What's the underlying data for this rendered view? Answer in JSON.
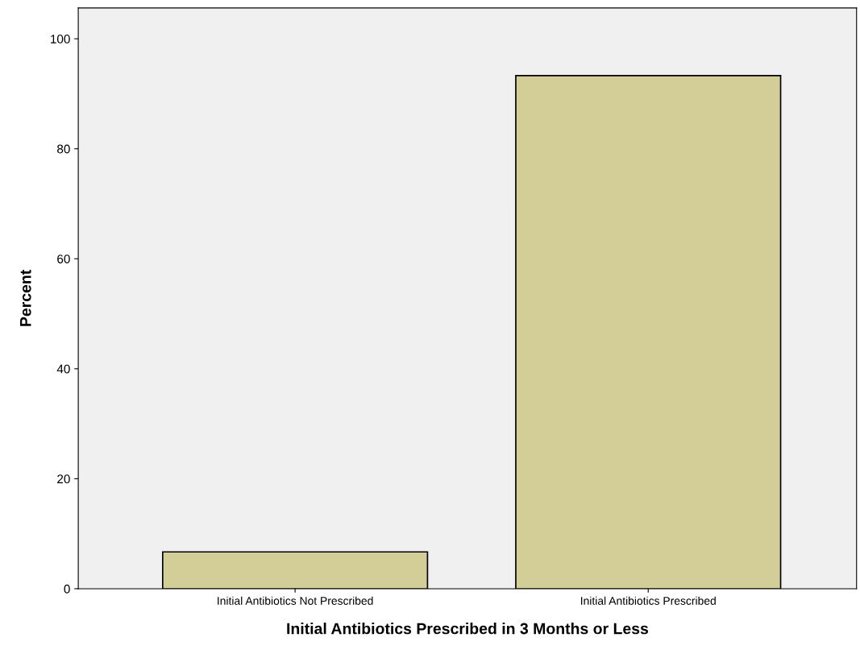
{
  "chart_data": {
    "type": "bar",
    "xlabel": "Initial Antibiotics Prescribed in 3 Months or Less",
    "ylabel": "Percent",
    "categories": [
      "Initial Antibiotics Not Prescribed",
      "Initial Antibiotics Prescribed"
    ],
    "values": [
      6.7,
      93.3
    ],
    "color": "#d3ce97",
    "ylim": [
      0,
      105.6
    ],
    "yticks": [
      0,
      20,
      40,
      60,
      80,
      100
    ],
    "grid": false,
    "legend": false
  }
}
